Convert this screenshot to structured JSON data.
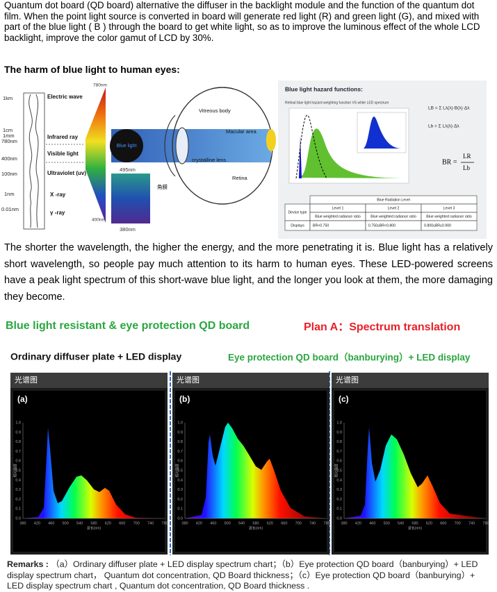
{
  "intro": "Quantum dot board (QD board) alternative the diffuser in the backlight module and the function of the quantum dot film. When the point light source is converted in board will generate red light (R) and green light (G), and mixed with part of the blue light ( B ) through the board to get white light, so as to improve the luminous effect of the whole LCD backlight, improve the color gamut of LCD by 30%.",
  "heading": "The harm of blue light to human eyes:",
  "figure1": {
    "scale_labels": [
      "1km",
      "1cm",
      "1mm",
      "780nm",
      "400nm",
      "100nm",
      "1nm",
      "0.01nm"
    ],
    "wave_labels": [
      "Electric wave",
      "Infrared ray",
      "Visible light",
      "Ultraviolet (uv)",
      "X -ray",
      "γ -ray"
    ],
    "visible_top": "780nm",
    "visible_bottom": "400nm",
    "blue_top": "495nm",
    "blue_bottom": "380nm",
    "blue_light": "Blue light",
    "eye_labels": {
      "vitreous": "Vitreous body",
      "macula": "Macular area",
      "lens": "crystalline lens",
      "retina": "Retina",
      "cornea": "角膜"
    },
    "hazard_title": "Blue light hazard functions:",
    "hazard_subtitle": "Retinal blue light hazard weighting function VS white LED spectrum",
    "formula_1": "LB = Σ Lλ(λ)·B(λ)·Δλ",
    "formula_2": "Lb = Σ Lλ(λ)·Δλ",
    "ratio": {
      "lhs": "BR =",
      "num": "LR",
      "den": "Lb"
    },
    "table": {
      "title": "Blue Radiation Level",
      "device_type": "Device type",
      "levels": [
        "Level 1",
        "Level 2",
        "Level 3"
      ],
      "ratio_labels": [
        "Blue weighted radiance ratio",
        "Blue weighted radiance ratio",
        "Blue weighted radiance ratio"
      ],
      "displays": "Displays",
      "ranges": [
        "BR<0.750",
        "0.750≤BR<0.800",
        "0.800≤BR≤0.900"
      ]
    }
  },
  "paragraph2": "The shorter the wavelength, the higher the energy, and the more penetrating it is. Blue light has a relatively short wavelength, so people pay much attention to its harm to human eyes. These LED-powered screens have a peak light spectrum of this short-wave blue light, and the longer you look at them, the more damaging they become.",
  "figure2": {
    "title_left": "Blue light resistant & eye protection QD board",
    "title_right": "Plan A：Spectrum translation",
    "subtitle_left": "Ordinary diffuser plate + LED display",
    "subtitle_right": "Eye protection QD board（banburying）+ LED display",
    "panel_header": "光谱图",
    "panels": [
      "(a)",
      "(b)",
      "(c)"
    ],
    "yticks": [
      "0.0",
      "0.1",
      "0.2",
      "0.3",
      "0.4",
      "0.5",
      "0.6",
      "0.7",
      "0.8",
      "0.9",
      "1.0"
    ],
    "xticks": [
      "380",
      "420",
      "460",
      "500",
      "540",
      "580",
      "620",
      "660",
      "700",
      "740",
      "780"
    ],
    "xlabel": "波长(nm)",
    "ylabel": "相对强度",
    "remarks_label": "Remarks :",
    "remarks": "（a）Ordinary diffuser plate + LED display spectrum chart；（b）Eye protection QD board（banburying）+ LED display spectrum chart， Quantum dot concentration, QD Board thickness；（c）Eye protection QD board（banburying）+ LED display  spectrum chart , Quantum dot concentration, QD Board thickness ."
  }
}
